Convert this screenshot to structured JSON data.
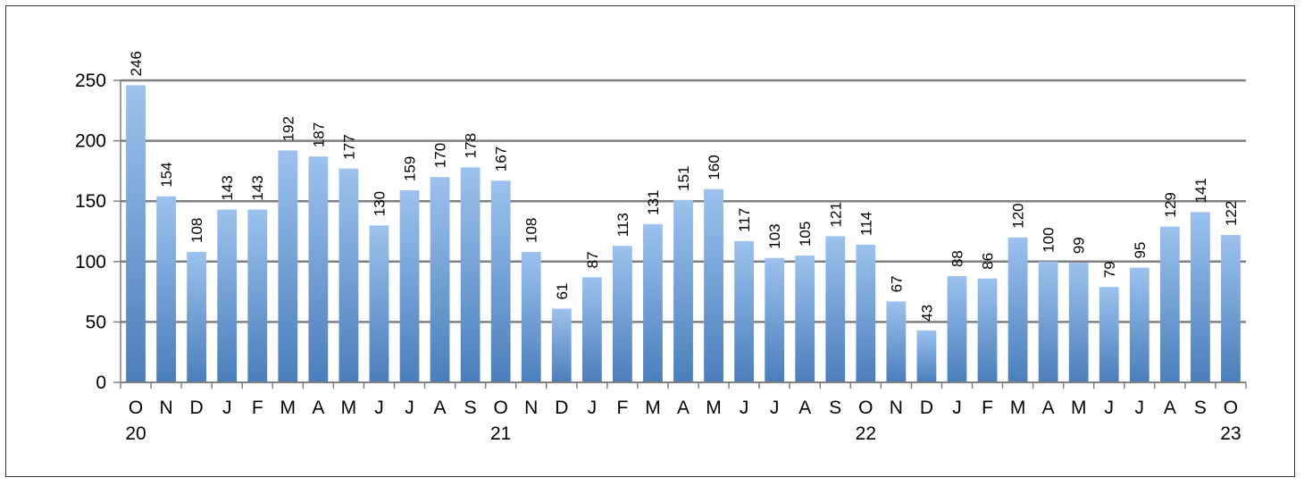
{
  "chart_data": {
    "type": "bar",
    "categories": [
      "O",
      "N",
      "D",
      "J",
      "F",
      "M",
      "A",
      "M",
      "J",
      "J",
      "A",
      "S",
      "O",
      "N",
      "D",
      "J",
      "F",
      "M",
      "A",
      "M",
      "J",
      "J",
      "A",
      "S",
      "O",
      "N",
      "D",
      "J",
      "F",
      "M",
      "A",
      "M",
      "J",
      "J",
      "A",
      "S",
      "O"
    ],
    "year_labels": [
      {
        "index": 0,
        "label": "20"
      },
      {
        "index": 12,
        "label": "21"
      },
      {
        "index": 24,
        "label": "22"
      },
      {
        "index": 36,
        "label": "23"
      }
    ],
    "values": [
      246,
      154,
      108,
      143,
      143,
      192,
      187,
      177,
      130,
      159,
      170,
      178,
      167,
      108,
      61,
      87,
      113,
      131,
      151,
      160,
      117,
      103,
      105,
      121,
      114,
      67,
      43,
      88,
      86,
      120,
      100,
      99,
      79,
      95,
      129,
      141,
      122
    ],
    "yticks": [
      0,
      50,
      100,
      150,
      200,
      250
    ],
    "ylim": [
      0,
      250
    ],
    "grid": true,
    "bar_color_top": "#9cc2ee",
    "bar_color_bottom": "#4a7ebb",
    "grid_color": "#7f7f7f"
  }
}
